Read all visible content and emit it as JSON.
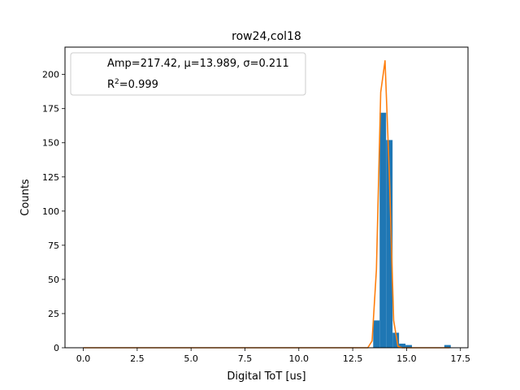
{
  "chart_data": {
    "type": "bar",
    "title": "row24,col18",
    "xlabel": "Digital ToT [us]",
    "ylabel": "Counts",
    "xlim": [
      -0.85,
      17.85
    ],
    "ylim": [
      0,
      220
    ],
    "xticks": [
      0.0,
      2.5,
      5.0,
      7.5,
      10.0,
      12.5,
      15.0,
      17.5
    ],
    "xtick_labels": [
      "0.0",
      "2.5",
      "5.0",
      "7.5",
      "10.0",
      "12.5",
      "15.0",
      "17.5"
    ],
    "yticks": [
      0,
      25,
      50,
      75,
      100,
      125,
      150,
      175,
      200
    ],
    "ytick_labels": [
      "0",
      "25",
      "50",
      "75",
      "100",
      "125",
      "150",
      "175",
      "200"
    ],
    "grid": false,
    "legend_position": "top-left",
    "legend": {
      "line1": "Amp=217.42, μ=13.989, σ=0.211",
      "line2_prefix": "R",
      "line2_sup": "2",
      "line2_suffix": "=0.999"
    },
    "histogram": {
      "bin_width": 0.3,
      "bins": [
        {
          "x": 13.6,
          "count": 20
        },
        {
          "x": 13.9,
          "count": 172
        },
        {
          "x": 14.2,
          "count": 152
        },
        {
          "x": 14.5,
          "count": 11
        },
        {
          "x": 14.8,
          "count": 3
        },
        {
          "x": 15.1,
          "count": 2
        },
        {
          "x": 16.9,
          "count": 2
        }
      ],
      "color": "#1f77b4"
    },
    "fit": {
      "name": "Gaussian fit",
      "color": "#ff7f0e",
      "x": [
        0,
        13.2,
        13.4,
        13.6,
        13.8,
        14.0,
        14.2,
        14.4,
        14.6,
        14.8,
        17.0
      ],
      "y": [
        0,
        0,
        5,
        57,
        187,
        210,
        127,
        20,
        1,
        0,
        0
      ]
    }
  }
}
